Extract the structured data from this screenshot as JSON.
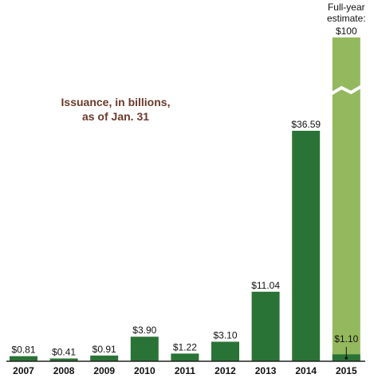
{
  "chart_data": {
    "type": "bar",
    "title": "Issuance, in billions,",
    "subtitle": "as of Jan. 31",
    "categories": [
      "2007",
      "2008",
      "2009",
      "2010",
      "2011",
      "2012",
      "2013",
      "2014",
      "2015"
    ],
    "values": [
      0.81,
      0.41,
      0.91,
      3.9,
      1.22,
      3.1,
      11.04,
      36.59,
      1.1
    ],
    "value_labels": [
      "$0.81",
      "$0.41",
      "$0.91",
      "$3.90",
      "$1.22",
      "$3.10",
      "$11.04",
      "$36.59",
      "$1.10"
    ],
    "estimate": {
      "category": "2015",
      "value": 100,
      "label_line1": "Full-year",
      "label_line2": "estimate:",
      "value_label": "$100",
      "axis_break": true
    },
    "ylim": [
      0,
      40
    ],
    "grid": false,
    "legend": "none",
    "colors": {
      "bar": "#2a7336",
      "estimate": "#94b85d",
      "axis": "#222222",
      "title": "#6b3a2a"
    }
  }
}
